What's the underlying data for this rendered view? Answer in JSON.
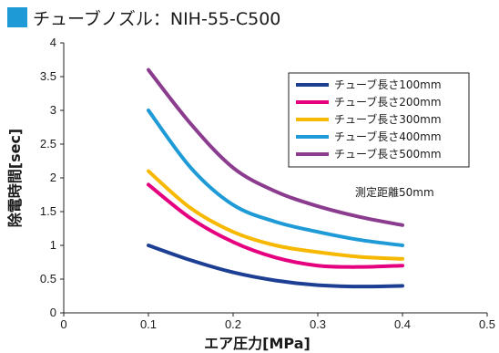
{
  "header": {
    "title": "チューブノズル：NIH-55-C500",
    "marker_color": "#1e9bd7"
  },
  "chart_data": {
    "type": "line",
    "title": "チューブノズル：NIH-55-C500",
    "xlabel": "エア圧力[MPa]",
    "ylabel": "除電時間[sec]",
    "xlim": [
      0,
      0.5
    ],
    "ylim": [
      0,
      4
    ],
    "x_ticks": [
      "0",
      "0.1",
      "0.2",
      "0.3",
      "0.4",
      "0.5"
    ],
    "y_ticks": [
      "0",
      "0.5",
      "1",
      "1.5",
      "2",
      "2.5",
      "3",
      "3.5",
      "4"
    ],
    "grid": "none",
    "legend_position": "top-right",
    "note": "測定距離50mm",
    "series": [
      {
        "name": "チューブ長さ100mm",
        "color": "#1c3f94",
        "x": [
          0.1,
          0.15,
          0.2,
          0.25,
          0.3,
          0.35,
          0.4
        ],
        "y": [
          1.0,
          0.78,
          0.6,
          0.48,
          0.41,
          0.39,
          0.4
        ]
      },
      {
        "name": "チューブ長さ200mm",
        "color": "#e5007f",
        "x": [
          0.1,
          0.15,
          0.2,
          0.25,
          0.3,
          0.35,
          0.4
        ],
        "y": [
          1.9,
          1.4,
          1.05,
          0.82,
          0.7,
          0.68,
          0.7
        ]
      },
      {
        "name": "チューブ長さ300mm",
        "color": "#f6b800",
        "x": [
          0.1,
          0.15,
          0.2,
          0.25,
          0.3,
          0.35,
          0.4
        ],
        "y": [
          2.1,
          1.55,
          1.2,
          1.0,
          0.9,
          0.83,
          0.8
        ]
      },
      {
        "name": "チューブ長さ400mm",
        "color": "#1e9bd7",
        "x": [
          0.1,
          0.15,
          0.2,
          0.25,
          0.3,
          0.35,
          0.4
        ],
        "y": [
          3.0,
          2.15,
          1.6,
          1.35,
          1.2,
          1.08,
          1.0
        ]
      },
      {
        "name": "チューブ長さ500mm",
        "color": "#8b3c8f",
        "x": [
          0.1,
          0.15,
          0.2,
          0.25,
          0.3,
          0.35,
          0.4
        ],
        "y": [
          3.6,
          2.8,
          2.15,
          1.8,
          1.58,
          1.42,
          1.3
        ]
      }
    ]
  }
}
